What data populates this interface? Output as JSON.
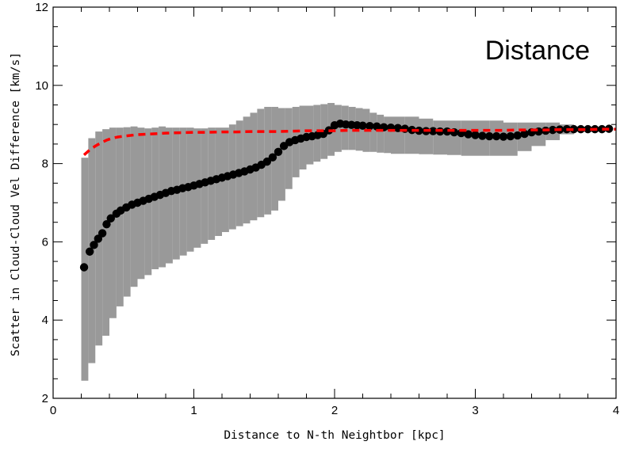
{
  "chart_data": {
    "type": "scatter",
    "panel_label": "Distance",
    "xlabel": "Distance to N-th Neightbor [kpc]",
    "ylabel": "Scatter in Cloud-Cloud Vel Difference [km/s]",
    "xlim": [
      0,
      4
    ],
    "ylim": [
      2,
      12
    ],
    "x_ticks": [
      0,
      1,
      2,
      3,
      4
    ],
    "x_tick_labels": [
      "0",
      "1",
      "2",
      "3",
      "4"
    ],
    "y_ticks": [
      2,
      4,
      6,
      8,
      10,
      12
    ],
    "y_tick_labels": [
      "2",
      "4",
      "6",
      "8",
      "10",
      "12"
    ],
    "grid": false,
    "series": [
      {
        "kind": "points",
        "color": "#000000",
        "x": [
          0.22,
          0.26,
          0.29,
          0.32,
          0.35,
          0.38,
          0.41,
          0.45,
          0.48,
          0.52,
          0.56,
          0.6,
          0.64,
          0.68,
          0.72,
          0.76,
          0.8,
          0.84,
          0.88,
          0.92,
          0.96,
          1.0,
          1.04,
          1.08,
          1.12,
          1.16,
          1.2,
          1.24,
          1.28,
          1.32,
          1.36,
          1.4,
          1.44,
          1.48,
          1.52,
          1.56,
          1.6,
          1.64,
          1.68,
          1.72,
          1.76,
          1.8,
          1.84,
          1.88,
          1.92,
          1.96,
          2.0,
          2.04,
          2.08,
          2.12,
          2.16,
          2.2,
          2.25,
          2.3,
          2.35,
          2.4,
          2.45,
          2.5,
          2.55,
          2.6,
          2.65,
          2.7,
          2.75,
          2.8,
          2.85,
          2.9,
          2.95,
          3.0,
          3.05,
          3.1,
          3.15,
          3.2,
          3.25,
          3.3,
          3.35,
          3.4,
          3.45,
          3.5,
          3.55,
          3.6,
          3.65,
          3.7,
          3.75,
          3.8,
          3.85,
          3.9,
          3.95
        ],
        "y": [
          5.35,
          5.75,
          5.92,
          6.08,
          6.22,
          6.45,
          6.6,
          6.72,
          6.8,
          6.88,
          6.95,
          7.0,
          7.05,
          7.1,
          7.15,
          7.2,
          7.25,
          7.3,
          7.33,
          7.37,
          7.4,
          7.44,
          7.48,
          7.52,
          7.56,
          7.6,
          7.64,
          7.68,
          7.72,
          7.76,
          7.8,
          7.85,
          7.9,
          7.97,
          8.05,
          8.16,
          8.3,
          8.45,
          8.55,
          8.6,
          8.64,
          8.68,
          8.7,
          8.73,
          8.76,
          8.85,
          8.98,
          9.02,
          9.0,
          8.99,
          8.98,
          8.97,
          8.96,
          8.95,
          8.93,
          8.92,
          8.91,
          8.89,
          8.86,
          8.84,
          8.83,
          8.83,
          8.82,
          8.82,
          8.8,
          8.78,
          8.75,
          8.73,
          8.71,
          8.7,
          8.7,
          8.69,
          8.7,
          8.72,
          8.76,
          8.8,
          8.82,
          8.84,
          8.86,
          8.87,
          8.88,
          8.88,
          8.88,
          8.88,
          8.88,
          8.88,
          8.89
        ]
      },
      {
        "kind": "dashed-line",
        "color": "#ff0000",
        "x": [
          0.22,
          0.26,
          0.3,
          0.34,
          0.38,
          0.42,
          0.46,
          0.5,
          0.55,
          0.6,
          0.7,
          0.8,
          0.9,
          1.0,
          1.1,
          1.2,
          1.3,
          1.4,
          1.5,
          1.6,
          1.7,
          1.8,
          1.9,
          2.0,
          2.1,
          2.2,
          2.3,
          2.4,
          2.5,
          2.6,
          2.7,
          2.8,
          2.9,
          3.0,
          3.1,
          3.2,
          3.3,
          3.4,
          3.5,
          3.6,
          3.7,
          3.8,
          3.9,
          4.0
        ],
        "y": [
          8.22,
          8.35,
          8.45,
          8.53,
          8.6,
          8.65,
          8.68,
          8.7,
          8.72,
          8.74,
          8.76,
          8.78,
          8.79,
          8.8,
          8.8,
          8.81,
          8.81,
          8.82,
          8.82,
          8.82,
          8.83,
          8.84,
          8.84,
          8.84,
          8.85,
          8.85,
          8.85,
          8.85,
          8.85,
          8.85,
          8.85,
          8.85,
          8.85,
          8.85,
          8.85,
          8.85,
          8.86,
          8.86,
          8.86,
          8.87,
          8.87,
          8.87,
          8.88,
          8.88
        ]
      },
      {
        "kind": "band",
        "color": "#999999",
        "x": [
          0.2,
          0.25,
          0.3,
          0.35,
          0.4,
          0.45,
          0.5,
          0.55,
          0.6,
          0.65,
          0.7,
          0.75,
          0.8,
          0.85,
          0.9,
          0.95,
          1.0,
          1.05,
          1.1,
          1.15,
          1.2,
          1.25,
          1.3,
          1.35,
          1.4,
          1.45,
          1.5,
          1.55,
          1.6,
          1.65,
          1.7,
          1.75,
          1.8,
          1.85,
          1.9,
          1.95,
          2.0,
          2.05,
          2.1,
          2.15,
          2.2,
          2.25,
          2.3,
          2.35,
          2.4,
          2.5,
          2.6,
          2.7,
          2.8,
          2.9,
          3.0,
          3.1,
          3.2,
          3.3,
          3.4,
          3.5,
          3.6,
          3.7
        ],
        "lower": [
          2.45,
          2.9,
          3.35,
          3.6,
          4.05,
          4.35,
          4.6,
          4.85,
          5.05,
          5.15,
          5.3,
          5.35,
          5.45,
          5.55,
          5.65,
          5.75,
          5.85,
          5.95,
          6.05,
          6.15,
          6.25,
          6.32,
          6.4,
          6.47,
          6.55,
          6.63,
          6.7,
          6.8,
          7.05,
          7.35,
          7.65,
          7.85,
          7.98,
          8.05,
          8.12,
          8.2,
          8.3,
          8.35,
          8.35,
          8.33,
          8.3,
          8.3,
          8.28,
          8.27,
          8.25,
          8.25,
          8.24,
          8.23,
          8.22,
          8.2,
          8.2,
          8.2,
          8.2,
          8.32,
          8.45,
          8.6,
          8.75,
          8.83
        ],
        "upper": [
          8.15,
          8.65,
          8.82,
          8.88,
          8.92,
          8.92,
          8.93,
          8.95,
          8.92,
          8.9,
          8.92,
          8.95,
          8.92,
          8.92,
          8.92,
          8.92,
          8.9,
          8.9,
          8.92,
          8.92,
          8.92,
          9.0,
          9.1,
          9.2,
          9.3,
          9.4,
          9.45,
          9.45,
          9.42,
          9.42,
          9.45,
          9.48,
          9.48,
          9.5,
          9.52,
          9.55,
          9.5,
          9.48,
          9.45,
          9.42,
          9.4,
          9.3,
          9.25,
          9.2,
          9.2,
          9.2,
          9.15,
          9.1,
          9.1,
          9.1,
          9.1,
          9.1,
          9.05,
          9.05,
          9.05,
          9.05,
          9.0,
          8.95
        ]
      }
    ]
  }
}
